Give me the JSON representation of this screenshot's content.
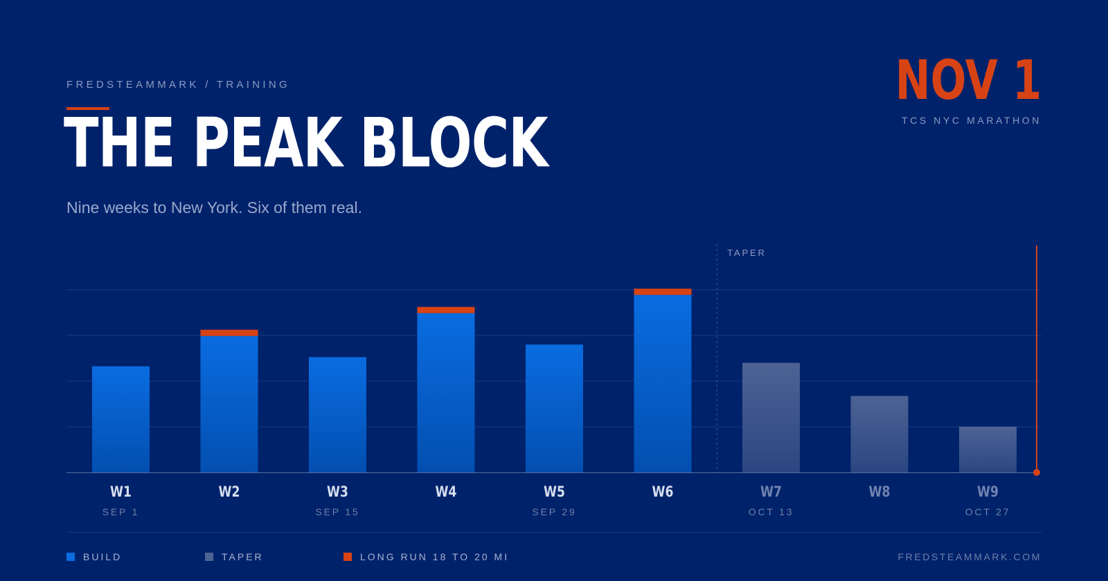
{
  "header": {
    "eyebrow": "FREDSTEAMMARK / TRAINING",
    "title": "THE PEAK BLOCK",
    "subtitle": "Nine weeks to New York. Six of them real."
  },
  "race": {
    "date": "NOV 1",
    "name": "TCS NYC MARATHON"
  },
  "colors": {
    "background": "#00226b",
    "build": "#0a6ce0",
    "taper": "#4d6394",
    "long_run": "#d84315"
  },
  "chart_data": {
    "type": "bar",
    "categories": [
      "W1",
      "W2",
      "W3",
      "W4",
      "W5",
      "W6",
      "W7",
      "W8",
      "W9"
    ],
    "date_labels": [
      "SEP 1",
      "",
      "SEP 15",
      "",
      "SEP 29",
      "",
      "OCT 13",
      "",
      "OCT 27"
    ],
    "values": [
      46.5,
      62.5,
      50.5,
      72.5,
      56,
      80.5,
      48,
      33.5,
      20
    ],
    "phase": [
      "build",
      "build",
      "build",
      "build",
      "build",
      "build",
      "taper",
      "taper",
      "taper"
    ],
    "long_run": [
      false,
      true,
      false,
      true,
      false,
      true,
      false,
      false,
      false
    ],
    "ylim": [
      0,
      100
    ],
    "gridlines": [
      20,
      40,
      60,
      80
    ],
    "taper_label": "TAPER",
    "grid": true,
    "legend_placement": "bottom-left",
    "legend": [
      {
        "key": "build",
        "label": "BUILD"
      },
      {
        "key": "taper",
        "label": "TAPER"
      },
      {
        "key": "long_run",
        "label": "LONG RUN 18 TO 20 MI"
      }
    ]
  },
  "footer": {
    "url": "FREDSTEAMMARK.COM"
  }
}
